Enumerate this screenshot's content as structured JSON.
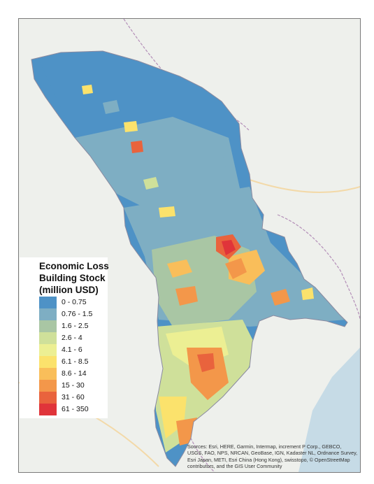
{
  "legend": {
    "title_lines": [
      "Economic Loss",
      "Building Stock",
      "(million USD)"
    ],
    "classes": [
      {
        "label": "0 - 0.75",
        "color": "#4e92c6"
      },
      {
        "label": "0.76 - 1.5",
        "color": "#7eaec3"
      },
      {
        "label": "1.6 - 2.5",
        "color": "#a9c6a4"
      },
      {
        "label": "2.6 - 4",
        "color": "#cfe09a"
      },
      {
        "label": "4.1 - 6",
        "color": "#ecef93"
      },
      {
        "label": "6.1 - 8.5",
        "color": "#fbe26c"
      },
      {
        "label": "8.6 - 14",
        "color": "#f9be5a"
      },
      {
        "label": "15 - 30",
        "color": "#f3974a"
      },
      {
        "label": "31 - 60",
        "color": "#e9633d"
      },
      {
        "label": "61 - 350",
        "color": "#e0343a"
      }
    ]
  },
  "attribution": "Sources: Esri, HERE, Garmin, Intermap, increment P Corp., GEBCO, USGS, FAO, NPS, NRCAN, GeoBase, IGN, Kadaster NL, Ordnance Survey, Esri Japan, METI, Esri China (Hong Kong), swisstopo, © OpenStreetMap contributors, and the GIS User Community",
  "colors": {
    "basemap_land": "#eef0ec",
    "basemap_water": "#c6dbe6",
    "border": "#b48fb8",
    "road": "#f3d9a8"
  }
}
